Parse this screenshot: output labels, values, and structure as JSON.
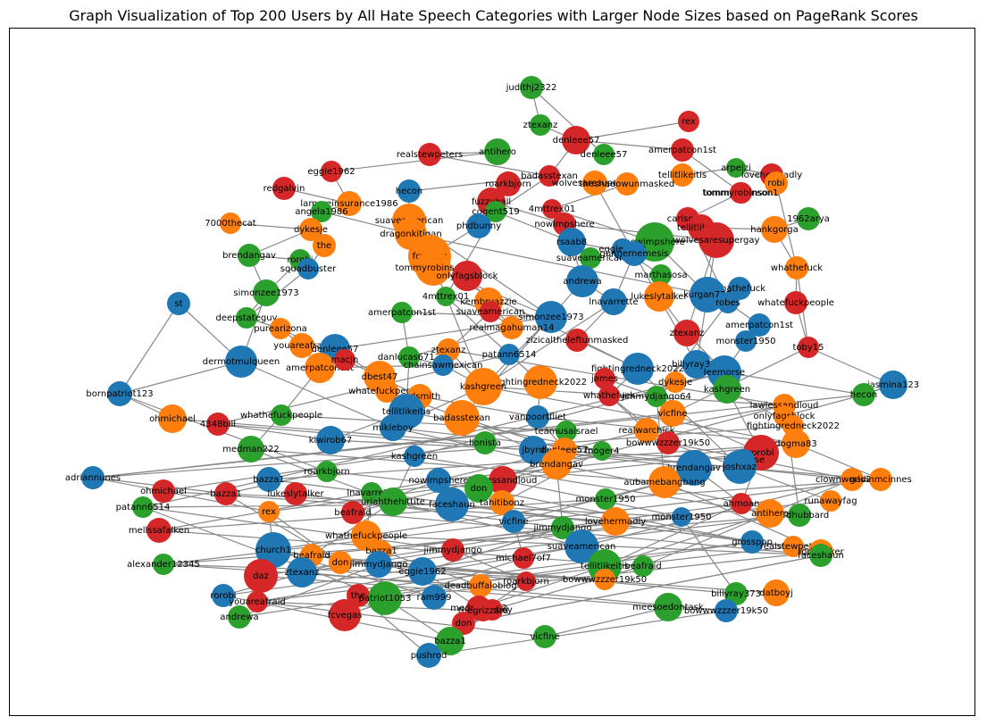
{
  "title": "Graph Visualization of Top 200 Users by All Hate Speech Categories with Larger Node Sizes based on PageRank Scores",
  "colors": {
    "blue": "#1f77b4",
    "orange": "#ff7f0e",
    "green": "#2ca02c",
    "red": "#d62728",
    "edge": "#888888"
  },
  "nodes": [
    {
      "label": "judithj2322",
      "c": "green"
    },
    {
      "label": "rex",
      "c": "red"
    },
    {
      "label": "ztexanz",
      "c": "green"
    },
    {
      "label": "denleee57",
      "c": "red"
    },
    {
      "label": "denleee57",
      "c": "green"
    },
    {
      "label": "amerpatcon1st",
      "c": "red"
    },
    {
      "label": "tommyrobinson1",
      "c": "red"
    },
    {
      "label": "antihero",
      "c": "green"
    },
    {
      "label": "realstewpeters",
      "c": "red"
    },
    {
      "label": "eggie1962",
      "c": "red"
    },
    {
      "label": "badasstexan",
      "c": "red"
    },
    {
      "label": "tellitlikeitis",
      "c": "orange"
    },
    {
      "label": "arpeizi",
      "c": "green"
    },
    {
      "label": "redgalvin",
      "c": "red"
    },
    {
      "label": "hecon",
      "c": "blue"
    },
    {
      "label": "roarkbjorn",
      "c": "red"
    },
    {
      "label": "wolvesaresupergay",
      "c": "orange"
    },
    {
      "label": "theshadowunmasked",
      "c": "orange"
    },
    {
      "label": "lovehermadly",
      "c": "red"
    },
    {
      "label": "robi",
      "c": "orange"
    },
    {
      "label": "lamereinsurance1986",
      "c": "orange"
    },
    {
      "label": "fuzzyball",
      "c": "red"
    },
    {
      "label": "4mttrex01",
      "c": "red"
    },
    {
      "label": "tommyrobinson1",
      "c": "red"
    },
    {
      "label": "angela1986",
      "c": "green"
    },
    {
      "label": "suaveamerican",
      "c": "orange"
    },
    {
      "label": "cogent519",
      "c": "green"
    },
    {
      "label": "nowimpshere",
      "c": "red"
    },
    {
      "label": "7000thecat",
      "c": "orange"
    },
    {
      "label": "dragonkitigan",
      "c": "orange"
    },
    {
      "label": "phdbunny",
      "c": "blue"
    },
    {
      "label": "carlsmith",
      "c": "red"
    },
    {
      "label": "1962arya",
      "c": "green"
    },
    {
      "label": "tellitlikeitis",
      "c": "red"
    },
    {
      "label": "dykesje",
      "c": "orange"
    },
    {
      "label": "rsaab8",
      "c": "blue"
    },
    {
      "label": "nowimpshere",
      "c": "green"
    },
    {
      "label": "the",
      "c": "orange"
    },
    {
      "label": "fcvegas",
      "c": "orange"
    },
    {
      "label": "eggie1962",
      "c": "blue"
    },
    {
      "label": "wolvesaresupergay",
      "c": "red"
    },
    {
      "label": "hankgorga",
      "c": "orange"
    },
    {
      "label": "brendangav",
      "c": "green"
    },
    {
      "label": "rorobi",
      "c": "green"
    },
    {
      "label": "suaveamerican",
      "c": "green"
    },
    {
      "label": "gunnernemesis",
      "c": "blue"
    },
    {
      "label": "squadbuster",
      "c": "blue"
    },
    {
      "label": "tommyrobinson1",
      "c": "orange"
    },
    {
      "label": "whathefuck",
      "c": "orange"
    },
    {
      "label": "onlyfagsblock",
      "c": "red"
    },
    {
      "label": "marthasosa",
      "c": "green"
    },
    {
      "label": "andrewa",
      "c": "blue"
    },
    {
      "label": "simonzee1973",
      "c": "green"
    },
    {
      "label": "4mttrex01",
      "c": "green"
    },
    {
      "label": "whathefuck",
      "c": "blue"
    },
    {
      "label": "st",
      "c": "blue"
    },
    {
      "label": "kurgan777",
      "c": "blue"
    },
    {
      "label": "amerpatcon1st",
      "c": "green"
    },
    {
      "label": "kembryazzie",
      "c": "orange"
    },
    {
      "label": "suaveamerican",
      "c": "red"
    },
    {
      "label": "lnavarrette",
      "c": "blue"
    },
    {
      "label": "lukeslytalker",
      "c": "orange"
    },
    {
      "label": "robes",
      "c": "blue"
    },
    {
      "label": "whatefuckpeople",
      "c": "red"
    },
    {
      "label": "deepstateguy",
      "c": "green"
    },
    {
      "label": "simonzee1973",
      "c": "blue"
    },
    {
      "label": "amerpatcon1st",
      "c": "blue"
    },
    {
      "label": "purearizona",
      "c": "orange"
    },
    {
      "label": "realmagahuman14",
      "c": "orange"
    },
    {
      "label": "youareafraid",
      "c": "orange"
    },
    {
      "label": "zizicaltheleftunmasked",
      "c": "red"
    },
    {
      "label": "ztexanz",
      "c": "red"
    },
    {
      "label": "denleee57",
      "c": "blue"
    },
    {
      "label": "monster1950",
      "c": "blue"
    },
    {
      "label": "toby15",
      "c": "red"
    },
    {
      "label": "amerpatcon1st",
      "c": "orange"
    },
    {
      "label": "dermotmulqueen",
      "c": "blue"
    },
    {
      "label": "macjn",
      "c": "red"
    },
    {
      "label": "danlucas6713",
      "c": "green"
    },
    {
      "label": "ztexanz",
      "c": "orange"
    },
    {
      "label": "patann6514",
      "c": "blue"
    },
    {
      "label": "fightingredneck2022",
      "c": "blue"
    },
    {
      "label": "billyray373",
      "c": "blue"
    },
    {
      "label": "leemorse",
      "c": "blue"
    },
    {
      "label": "jasmina123",
      "c": "blue"
    },
    {
      "label": "chainsawmexican",
      "c": "blue"
    },
    {
      "label": "dbest47",
      "c": "orange"
    },
    {
      "label": "fightingredneck2022",
      "c": "orange"
    },
    {
      "label": "james",
      "c": "red"
    },
    {
      "label": "dykesje",
      "c": "orange"
    },
    {
      "label": "bornpatriot123",
      "c": "blue"
    },
    {
      "label": "whatefuckpeople",
      "c": "orange"
    },
    {
      "label": "carlsmith",
      "c": "orange"
    },
    {
      "label": "kashgreen",
      "c": "orange"
    },
    {
      "label": "whathefuck",
      "c": "red"
    },
    {
      "label": "jimmydjango64",
      "c": "green"
    },
    {
      "label": "kashgreen",
      "c": "green"
    },
    {
      "label": "hecon",
      "c": "green"
    },
    {
      "label": "tellitlikeitis",
      "c": "blue"
    },
    {
      "label": "ohmichael",
      "c": "orange"
    },
    {
      "label": "whathefuckpeople",
      "c": "green"
    },
    {
      "label": "4348bill",
      "c": "red"
    },
    {
      "label": "badasstexan",
      "c": "orange"
    },
    {
      "label": "vanpoortfliet",
      "c": "blue"
    },
    {
      "label": "lawlessandloud",
      "c": "orange"
    },
    {
      "label": "onlyfagsblock",
      "c": "orange"
    },
    {
      "label": "vicfine",
      "c": "orange"
    },
    {
      "label": "fightingredneck2022",
      "c": "orange"
    },
    {
      "label": "mikieboy",
      "c": "blue"
    },
    {
      "label": "kiwirob67",
      "c": "blue"
    },
    {
      "label": "teamusaisrael",
      "c": "green"
    },
    {
      "label": "realwarchick",
      "c": "orange"
    },
    {
      "label": "medman222",
      "c": "green"
    },
    {
      "label": "lionista",
      "c": "green"
    },
    {
      "label": "jbyrd",
      "c": "blue"
    },
    {
      "label": "denleee57",
      "c": "orange"
    },
    {
      "label": "bowwwzzzer19k50",
      "c": "red"
    },
    {
      "label": "dogma83",
      "c": "orange"
    },
    {
      "label": "rorobi",
      "c": "red"
    },
    {
      "label": "adriannunes",
      "c": "blue"
    },
    {
      "label": "kashgreen",
      "c": "blue"
    },
    {
      "label": "roarkbjorn",
      "c": "green"
    },
    {
      "label": "fnoger4",
      "c": "green"
    },
    {
      "label": "leemorse",
      "c": "blue"
    },
    {
      "label": "brendangav",
      "c": "blue"
    },
    {
      "label": "bazza1",
      "c": "blue"
    },
    {
      "label": "brendangav",
      "c": "orange"
    },
    {
      "label": "joshxaz",
      "c": "blue"
    },
    {
      "label": "lawlessandloud",
      "c": "red"
    },
    {
      "label": "nowimpshere",
      "c": "blue"
    },
    {
      "label": "aubamebangbang",
      "c": "orange"
    },
    {
      "label": "clownworld2022",
      "c": "orange"
    },
    {
      "label": "gavinmcinnes",
      "c": "orange"
    },
    {
      "label": "ohmichael",
      "c": "red"
    },
    {
      "label": "bazza1",
      "c": "red"
    },
    {
      "label": "lukeslytalker",
      "c": "red"
    },
    {
      "label": "lnavarrette",
      "c": "green"
    },
    {
      "label": "uriahthehittite",
      "c": "green"
    },
    {
      "label": "don",
      "c": "green"
    },
    {
      "label": "faceshaun",
      "c": "blue"
    },
    {
      "label": "tahitibonz",
      "c": "orange"
    },
    {
      "label": "monster1950",
      "c": "green"
    },
    {
      "label": "ahmoan",
      "c": "red"
    },
    {
      "label": "patann6514",
      "c": "green"
    },
    {
      "label": "wardhubbard",
      "c": "green"
    },
    {
      "label": "runawayfag",
      "c": "orange"
    },
    {
      "label": "rex",
      "c": "orange"
    },
    {
      "label": "beafraid",
      "c": "red"
    },
    {
      "label": "vicfine",
      "c": "blue"
    },
    {
      "label": "antihero",
      "c": "orange"
    },
    {
      "label": "mellssafalken",
      "c": "red"
    },
    {
      "label": "lovehermadly",
      "c": "orange"
    },
    {
      "label": "monster1950",
      "c": "blue"
    },
    {
      "label": "jimmydjango",
      "c": "green"
    },
    {
      "label": "whathefuckpeople",
      "c": "orange"
    },
    {
      "label": "suaveamerican",
      "c": "blue"
    },
    {
      "label": "grosspop",
      "c": "blue"
    },
    {
      "label": "realstewpeters",
      "c": "orange"
    },
    {
      "label": "rodstryker",
      "c": "orange"
    },
    {
      "label": "church1",
      "c": "blue"
    },
    {
      "label": "bazza1",
      "c": "orange"
    },
    {
      "label": "jimmydjango",
      "c": "red"
    },
    {
      "label": "alexander12345",
      "c": "green"
    },
    {
      "label": "beafraid",
      "c": "orange"
    },
    {
      "label": "don",
      "c": "orange"
    },
    {
      "label": "jimmydjango",
      "c": "blue"
    },
    {
      "label": "michael7of7",
      "c": "red"
    },
    {
      "label": "tellitlikeitis",
      "c": "green"
    },
    {
      "label": "beafraid",
      "c": "green"
    },
    {
      "label": "daz",
      "c": "red"
    },
    {
      "label": "ztexanz",
      "c": "blue"
    },
    {
      "label": "eggie1962",
      "c": "blue"
    },
    {
      "label": "faceshaun",
      "c": "green"
    },
    {
      "label": "rorobi",
      "c": "blue"
    },
    {
      "label": "youareafraid",
      "c": "red"
    },
    {
      "label": "the",
      "c": "red"
    },
    {
      "label": "patriot1053",
      "c": "green"
    },
    {
      "label": "ram999",
      "c": "blue"
    },
    {
      "label": "deadbuffaloblog",
      "c": "orange"
    },
    {
      "label": "roarkbjorn",
      "c": "red"
    },
    {
      "label": "bowwwzzzer19k50",
      "c": "orange"
    },
    {
      "label": "billyray373",
      "c": "green"
    },
    {
      "label": "datboyj",
      "c": "orange"
    },
    {
      "label": "andrewa",
      "c": "green"
    },
    {
      "label": "fcvegas",
      "c": "red"
    },
    {
      "label": "medman222",
      "c": "red"
    },
    {
      "label": "mikieboy",
      "c": "red"
    },
    {
      "label": "meesoedontask",
      "c": "green"
    },
    {
      "label": "bowwwzzzer19k50",
      "c": "blue"
    },
    {
      "label": "thegrizzard",
      "c": "red"
    },
    {
      "label": "don",
      "c": "red"
    },
    {
      "label": "bazza1",
      "c": "green"
    },
    {
      "label": "vicfine",
      "c": "green"
    },
    {
      "label": "pushrod",
      "c": "blue"
    },
    {
      "label": "christos",
      "c": "red"
    }
  ]
}
